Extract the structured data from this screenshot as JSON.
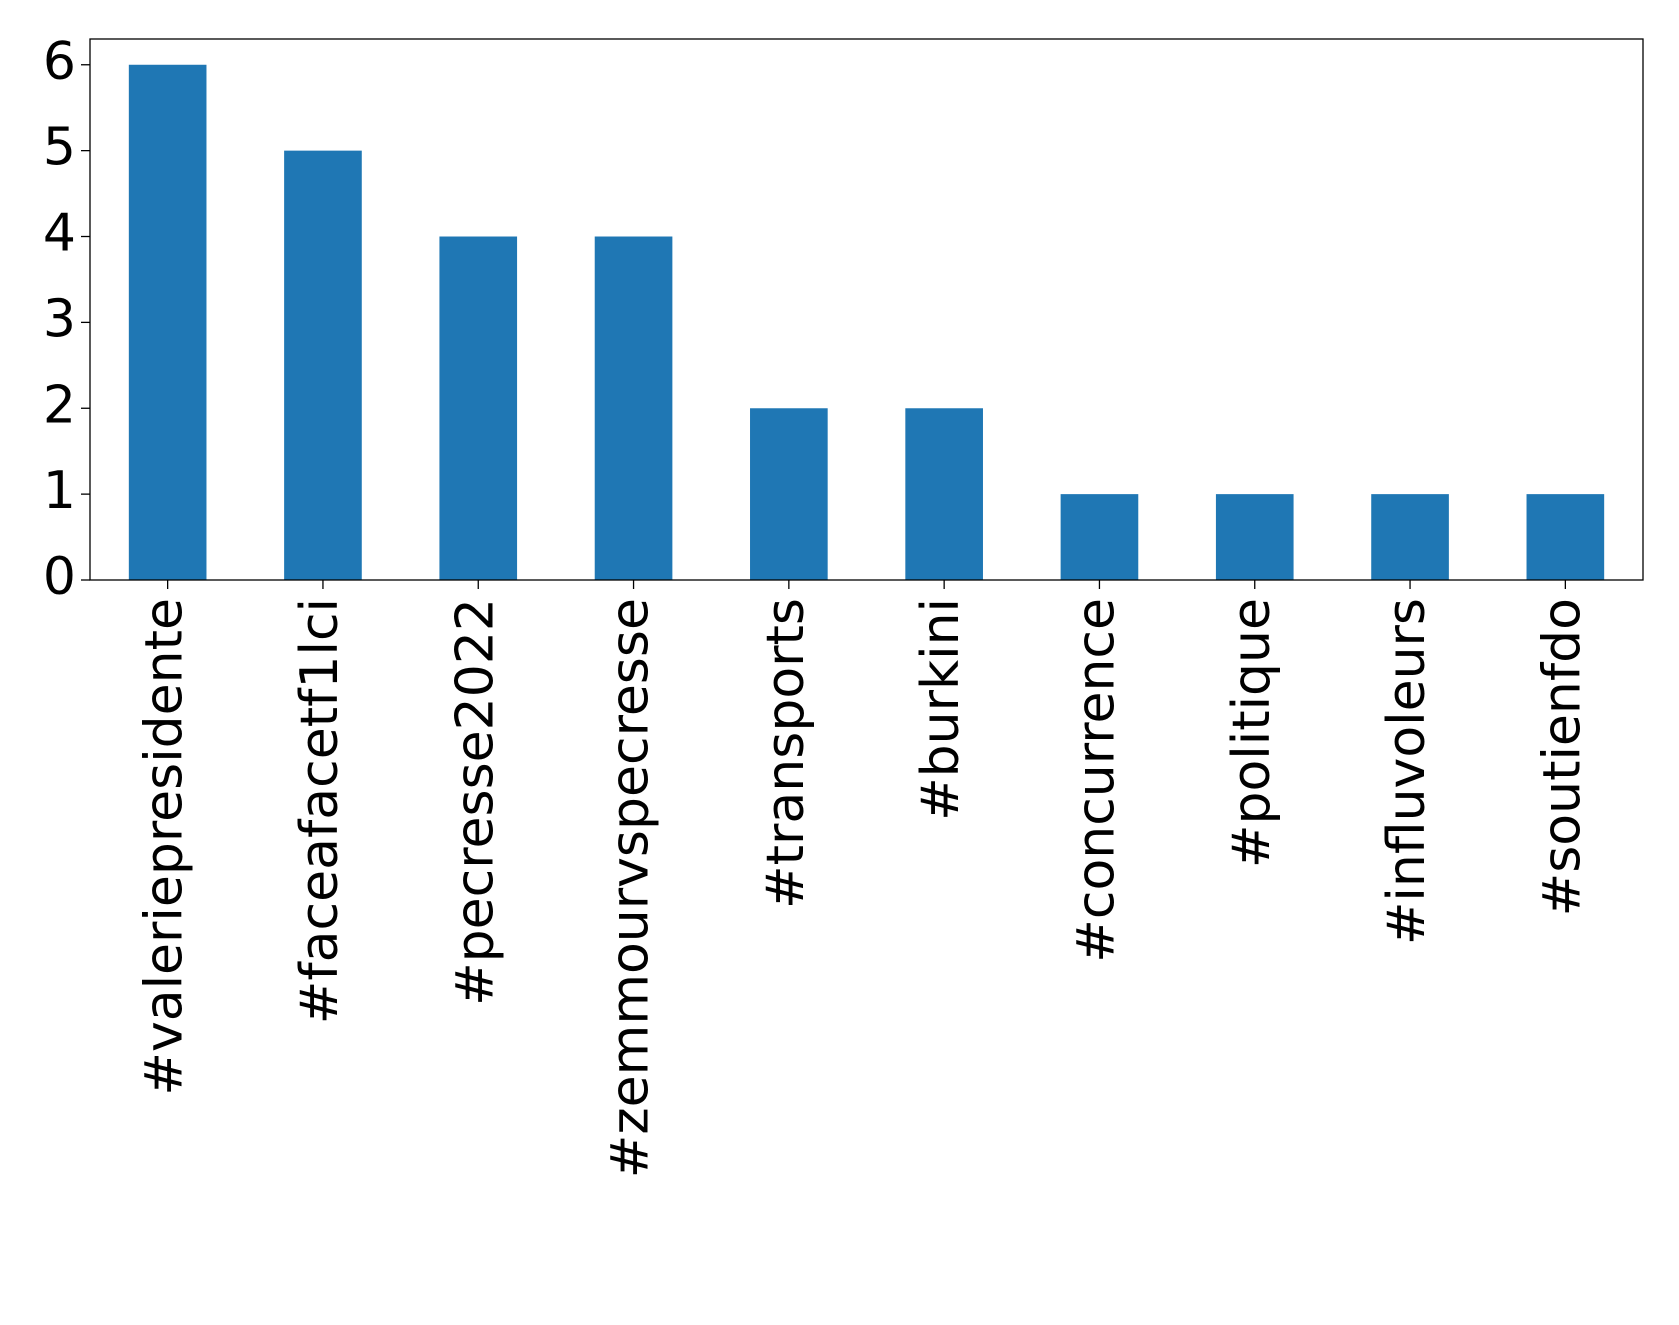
{
  "chart_data": {
    "type": "bar",
    "categories": [
      "#valeriepresidente",
      "#faceafacetf1lci",
      "#pecresse2022",
      "#zemmourvspecresse",
      "#transports",
      "#burkini",
      "#concurrence",
      "#politique",
      "#influvoleurs",
      "#soutienfdo"
    ],
    "values": [
      6,
      5,
      4,
      4,
      2,
      2,
      1,
      1,
      1,
      1
    ],
    "color": "#1f77b4",
    "ylim": [
      0,
      6.3
    ],
    "yticks": [
      0,
      1,
      2,
      3,
      4,
      5,
      6
    ],
    "grid": false
  }
}
